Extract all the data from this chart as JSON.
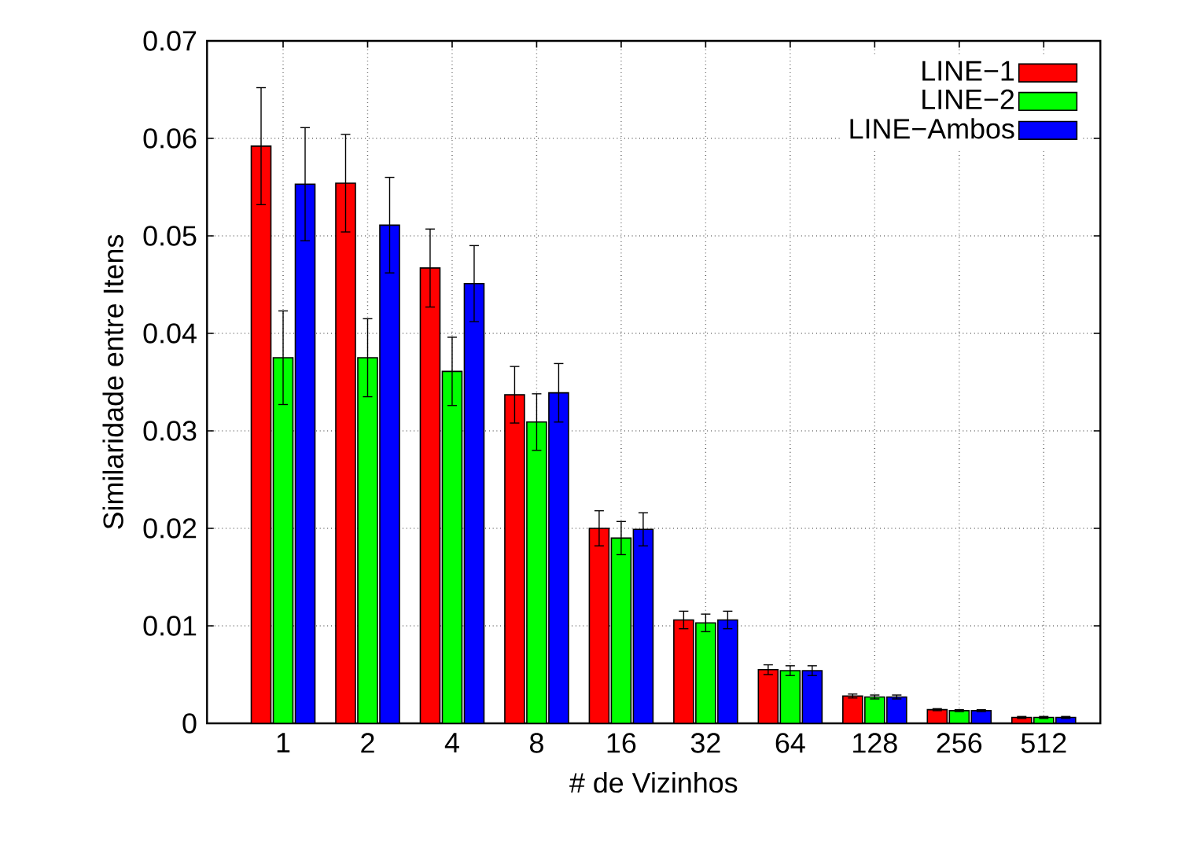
{
  "chart_data": {
    "type": "bar",
    "xlabel": "# de Vizinhos",
    "ylabel": "Similaridade entre Itens",
    "categories": [
      "1",
      "2",
      "4",
      "8",
      "16",
      "32",
      "64",
      "128",
      "256",
      "512"
    ],
    "series": [
      {
        "name": "LINE−1",
        "color": "#ff0000",
        "values": [
          0.0592,
          0.0554,
          0.0467,
          0.0337,
          0.02,
          0.0106,
          0.0055,
          0.0028,
          0.0014,
          0.0006
        ],
        "errors": [
          0.006,
          0.005,
          0.004,
          0.0029,
          0.0018,
          0.0009,
          0.0005,
          0.0002,
          0.0001,
          0.0001
        ]
      },
      {
        "name": "LINE−2",
        "color": "#00ff00",
        "values": [
          0.0375,
          0.0375,
          0.0361,
          0.0309,
          0.019,
          0.0103,
          0.0054,
          0.0027,
          0.0013,
          0.0006
        ],
        "errors": [
          0.0048,
          0.004,
          0.0035,
          0.0029,
          0.0017,
          0.0009,
          0.0005,
          0.0002,
          0.0001,
          0.0001
        ]
      },
      {
        "name": "LINE−Ambos",
        "color": "#0000ff",
        "values": [
          0.0553,
          0.0511,
          0.0451,
          0.0339,
          0.0199,
          0.0106,
          0.0054,
          0.0027,
          0.0013,
          0.0006
        ],
        "errors": [
          0.0058,
          0.0049,
          0.0039,
          0.003,
          0.0017,
          0.0009,
          0.0005,
          0.0002,
          0.0001,
          0.0001
        ]
      }
    ],
    "ylim": [
      0,
      0.07
    ],
    "yticks": [
      0,
      0.01,
      0.02,
      0.03,
      0.04,
      0.05,
      0.06,
      0.07
    ],
    "grid": true,
    "legend": "top right"
  }
}
